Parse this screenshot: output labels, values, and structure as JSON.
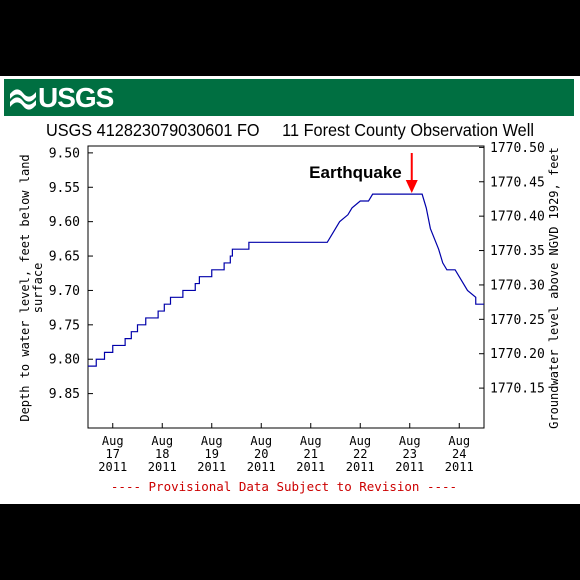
{
  "brand": {
    "logo_text": "USGS",
    "banner_color": "#006f41"
  },
  "chart_data": {
    "type": "line",
    "title": "USGS 412823079030601 FO     11 Forest County Observation Well",
    "ylabel_left": "Depth to water level, feet below land surface",
    "ylabel_right": "Groundwater level above NGVD 1929, feet",
    "xlabel": "",
    "ylim_left": [
      9.9,
      9.49
    ],
    "ylim_right": [
      1770.092,
      1770.502
    ],
    "left_ticks": [
      "9.50",
      "9.55",
      "9.60",
      "9.65",
      "9.70",
      "9.75",
      "9.80",
      "9.85"
    ],
    "right_ticks": [
      "1770.50",
      "1770.45",
      "1770.40",
      "1770.35",
      "1770.30",
      "1770.25",
      "1770.20",
      "1770.15"
    ],
    "x_ticks": [
      {
        "month": "Aug",
        "day": "17",
        "year": "2011"
      },
      {
        "month": "Aug",
        "day": "18",
        "year": "2011"
      },
      {
        "month": "Aug",
        "day": "19",
        "year": "2011"
      },
      {
        "month": "Aug",
        "day": "20",
        "year": "2011"
      },
      {
        "month": "Aug",
        "day": "21",
        "year": "2011"
      },
      {
        "month": "Aug",
        "day": "22",
        "year": "2011"
      },
      {
        "month": "Aug",
        "day": "23",
        "year": "2011"
      },
      {
        "month": "Aug",
        "day": "24",
        "year": "2011"
      }
    ],
    "xlim": [
      "2011-08-16 12:00",
      "2011-08-24 12:00"
    ],
    "line_color": "#0000aa",
    "series": [
      {
        "points": [
          [
            "2011-08-16 12:00",
            9.81
          ],
          [
            "2011-08-16 16:00",
            9.81
          ],
          [
            "2011-08-16 16:00",
            9.8
          ],
          [
            "2011-08-16 20:00",
            9.8
          ],
          [
            "2011-08-16 20:00",
            9.79
          ],
          [
            "2011-08-17 00:00",
            9.79
          ],
          [
            "2011-08-17 00:00",
            9.78
          ],
          [
            "2011-08-17 06:00",
            9.78
          ],
          [
            "2011-08-17 06:00",
            9.77
          ],
          [
            "2011-08-17 09:00",
            9.77
          ],
          [
            "2011-08-17 09:00",
            9.76
          ],
          [
            "2011-08-17 12:00",
            9.76
          ],
          [
            "2011-08-17 12:00",
            9.75
          ],
          [
            "2011-08-17 16:00",
            9.75
          ],
          [
            "2011-08-17 16:00",
            9.74
          ],
          [
            "2011-08-17 22:00",
            9.74
          ],
          [
            "2011-08-17 22:00",
            9.73
          ],
          [
            "2011-08-18 01:00",
            9.73
          ],
          [
            "2011-08-18 01:00",
            9.72
          ],
          [
            "2011-08-18 04:00",
            9.72
          ],
          [
            "2011-08-18 04:00",
            9.71
          ],
          [
            "2011-08-18 10:00",
            9.71
          ],
          [
            "2011-08-18 10:00",
            9.7
          ],
          [
            "2011-08-18 16:00",
            9.7
          ],
          [
            "2011-08-18 16:00",
            9.69
          ],
          [
            "2011-08-18 18:00",
            9.69
          ],
          [
            "2011-08-18 18:00",
            9.68
          ],
          [
            "2011-08-19 00:00",
            9.68
          ],
          [
            "2011-08-19 00:00",
            9.67
          ],
          [
            "2011-08-19 06:00",
            9.67
          ],
          [
            "2011-08-19 06:00",
            9.66
          ],
          [
            "2011-08-19 09:00",
            9.66
          ],
          [
            "2011-08-19 09:00",
            9.65
          ],
          [
            "2011-08-19 10:00",
            9.65
          ],
          [
            "2011-08-19 10:00",
            9.64
          ],
          [
            "2011-08-19 18:00",
            9.64
          ],
          [
            "2011-08-19 18:00",
            9.63
          ],
          [
            "2011-08-21 08:00",
            9.63
          ],
          [
            "2011-08-21 10:00",
            9.62
          ],
          [
            "2011-08-21 12:00",
            9.61
          ],
          [
            "2011-08-21 14:00",
            9.6
          ],
          [
            "2011-08-21 18:00",
            9.59
          ],
          [
            "2011-08-21 20:00",
            9.58
          ],
          [
            "2011-08-22 00:00",
            9.57
          ],
          [
            "2011-08-22 04:00",
            9.57
          ],
          [
            "2011-08-22 06:00",
            9.56
          ],
          [
            "2011-08-23 06:00",
            9.56
          ],
          [
            "2011-08-23 08:00",
            9.58
          ],
          [
            "2011-08-23 10:00",
            9.61
          ],
          [
            "2011-08-23 14:00",
            9.64
          ],
          [
            "2011-08-23 16:00",
            9.66
          ],
          [
            "2011-08-23 18:00",
            9.67
          ],
          [
            "2011-08-23 22:00",
            9.67
          ],
          [
            "2011-08-24 00:00",
            9.68
          ],
          [
            "2011-08-24 04:00",
            9.7
          ],
          [
            "2011-08-24 08:00",
            9.71
          ],
          [
            "2011-08-24 08:00",
            9.72
          ],
          [
            "2011-08-24 12:00",
            9.72
          ]
        ]
      }
    ],
    "annotation": {
      "text": "Earthquake",
      "at": "2011-08-23 00:00",
      "color": "#ff0000"
    },
    "footer": "---- Provisional Data Subject to Revision ----",
    "footer_color": "#cc0000",
    "grid": false
  }
}
